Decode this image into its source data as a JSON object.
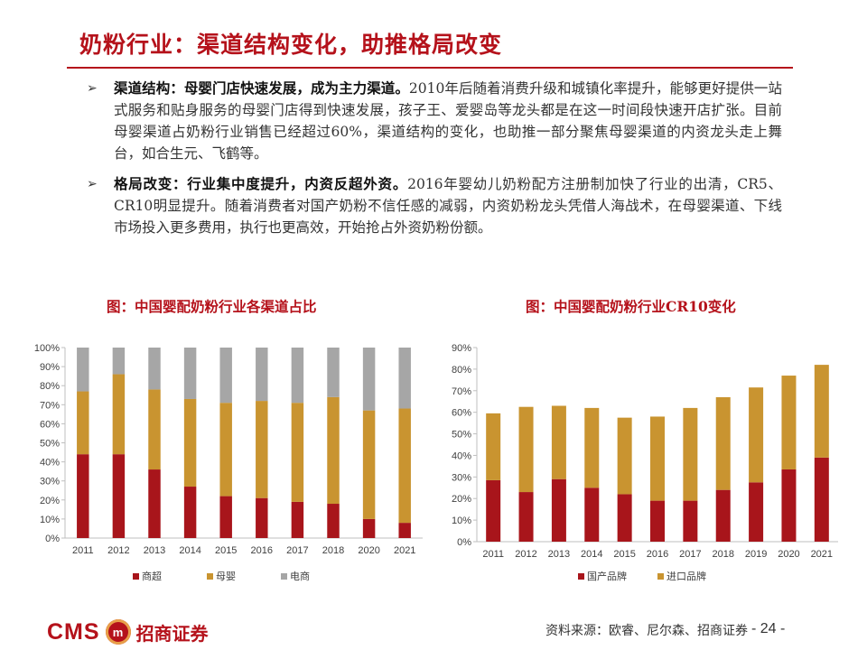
{
  "page": {
    "title": "奶粉行业：渠道结构变化，助推格局改变",
    "bullets": [
      {
        "mark": "➢",
        "bold": "渠道结构：母婴门店快速发展，成为主力渠道。",
        "text": "2010年后随着消费升级和城镇化率提升，能够更好提供一站式服务和贴身服务的母婴门店得到快速发展，孩子王、爱婴岛等龙头都是在这一时间段快速开店扩张。目前母婴渠道占奶粉行业销售已经超过60%，渠道结构的变化，也助推一部分聚焦母婴渠道的内资龙头走上舞台，如合生元、飞鹤等。"
      },
      {
        "mark": "➢",
        "bold": "格局改变：行业集中度提升，内资反超外资。",
        "text": "2016年婴幼儿奶粉配方注册制加快了行业的出清，CR5、CR10明显提升。随着消费者对国产奶粉不信任感的减弱，内资奶粉龙头凭借人海战术，在母婴渠道、下线市场投入更多费用，执行也更高效，开始抢占外资奶粉份额。"
      }
    ],
    "source": "资料来源：欧睿、尼尔森、招商证券",
    "page_number": "- 24 -",
    "logo": {
      "cms": "CMS",
      "emblem": "m",
      "brand": "招商证券"
    }
  },
  "chart_data": [
    {
      "type": "bar",
      "stacked": true,
      "title": "图：中国婴配奶粉行业各渠道占比",
      "categories": [
        "2011",
        "2012",
        "2013",
        "2014",
        "2015",
        "2016",
        "2017",
        "2018",
        "2020",
        "2021"
      ],
      "series": [
        {
          "name": "商超",
          "color": "#a8151b",
          "values": [
            44,
            44,
            36,
            27,
            22,
            21,
            19,
            18,
            10,
            8
          ]
        },
        {
          "name": "母婴",
          "color": "#c99430",
          "values": [
            33,
            42,
            42,
            46,
            49,
            51,
            52,
            56,
            57,
            60
          ]
        },
        {
          "name": "电商",
          "color": "#a6a6a6",
          "values": [
            23,
            14,
            22,
            27,
            29,
            28,
            29,
            26,
            33,
            32
          ]
        }
      ],
      "ylim": [
        0,
        100
      ],
      "yticks": [
        "0%",
        "10%",
        "20%",
        "30%",
        "40%",
        "50%",
        "60%",
        "70%",
        "80%",
        "90%",
        "100%"
      ],
      "legend": "bottom",
      "xlabel": "",
      "ylabel": ""
    },
    {
      "type": "bar",
      "stacked": true,
      "title": "图：中国婴配奶粉行业CR10变化",
      "categories": [
        "2011",
        "2012",
        "2013",
        "2014",
        "2015",
        "2016",
        "2017",
        "2018",
        "2019",
        "2020",
        "2021"
      ],
      "series": [
        {
          "name": "国产品牌",
          "color": "#a8151b",
          "values": [
            28.5,
            23,
            29,
            25,
            22,
            19,
            19,
            24,
            27.5,
            33.5,
            39
          ]
        },
        {
          "name": "进口品牌",
          "color": "#c99430",
          "values": [
            31,
            39.5,
            34,
            37,
            35.5,
            39,
            43,
            43,
            44,
            43.5,
            43
          ]
        }
      ],
      "ylim": [
        0,
        90
      ],
      "yticks": [
        "0%",
        "10%",
        "20%",
        "30%",
        "40%",
        "50%",
        "60%",
        "70%",
        "80%",
        "90%"
      ],
      "legend": "bottom",
      "xlabel": "",
      "ylabel": ""
    }
  ]
}
